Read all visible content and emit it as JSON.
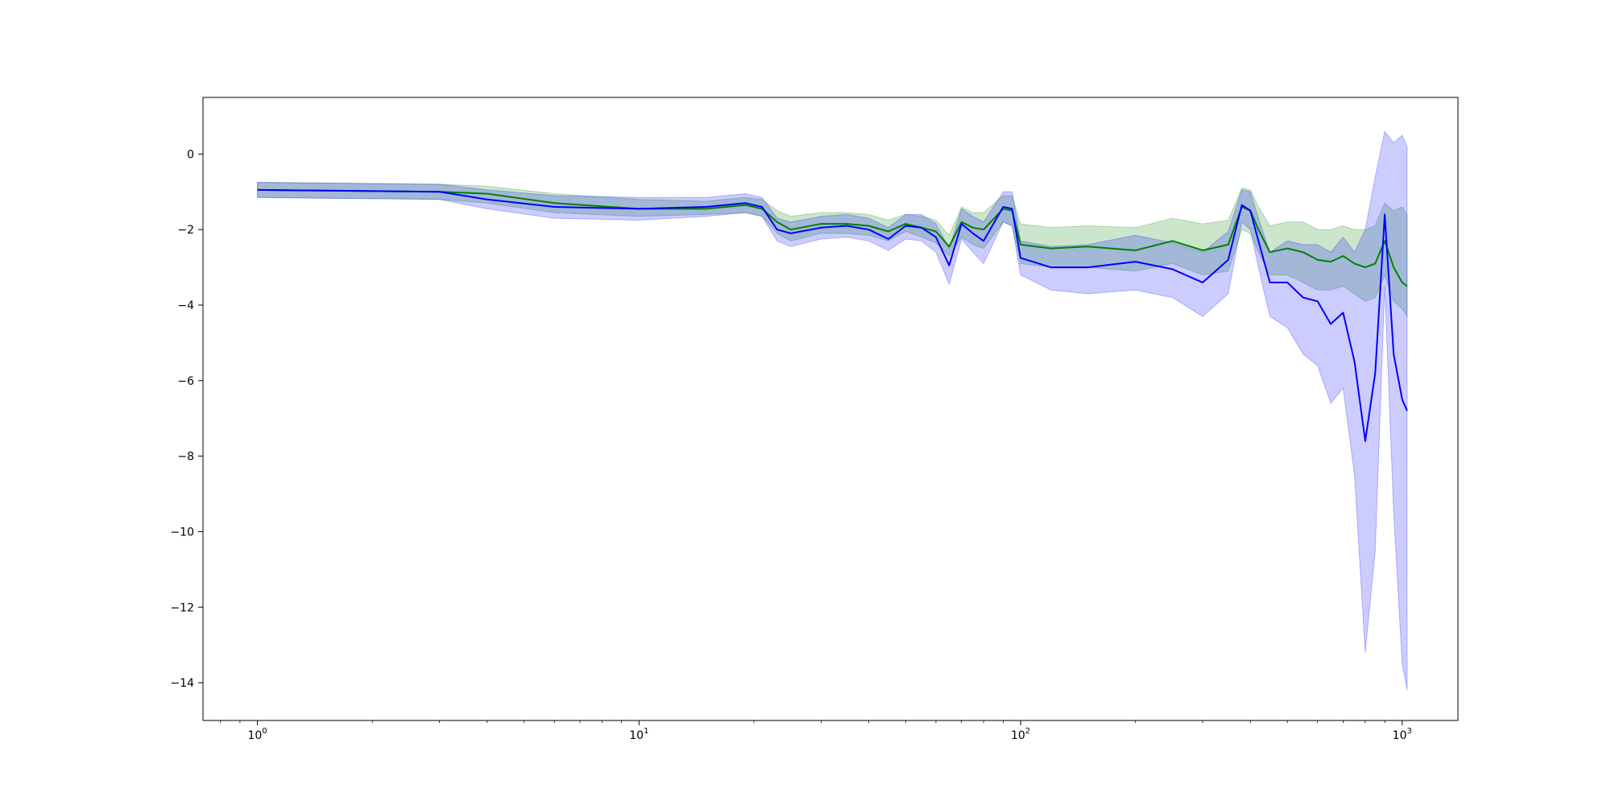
{
  "chart_data": {
    "type": "line",
    "title": "",
    "xlabel": "",
    "ylabel": "",
    "xscale": "log",
    "xlim": [
      0.72,
      1400
    ],
    "ylim": [
      -15,
      1.5
    ],
    "grid": false,
    "x_ticks": [
      {
        "value": 1,
        "label": "10",
        "exp": "0"
      },
      {
        "value": 10,
        "label": "10",
        "exp": "1"
      },
      {
        "value": 100,
        "label": "10",
        "exp": "2"
      },
      {
        "value": 1000,
        "label": "10",
        "exp": "3"
      }
    ],
    "y_ticks": [
      {
        "value": 0,
        "label": "0"
      },
      {
        "value": -2,
        "label": "−2"
      },
      {
        "value": -4,
        "label": "−4"
      },
      {
        "value": -6,
        "label": "−6"
      },
      {
        "value": -8,
        "label": "−8"
      },
      {
        "value": -10,
        "label": "−10"
      },
      {
        "value": -12,
        "label": "−12"
      },
      {
        "value": -14,
        "label": "−14"
      }
    ],
    "series": [
      {
        "color": "#008000",
        "band_color": "#008000",
        "x": [
          1,
          3,
          4,
          6,
          10,
          15,
          19,
          21,
          23,
          25,
          30,
          35,
          40,
          45,
          50,
          55,
          60,
          65,
          70,
          75,
          80,
          90,
          95,
          100,
          120,
          150,
          200,
          250,
          300,
          350,
          380,
          400,
          420,
          450,
          500,
          550,
          600,
          650,
          700,
          750,
          800,
          850,
          900,
          950,
          1000,
          1030
        ],
        "y": [
          -0.95,
          -1.0,
          -1.05,
          -1.3,
          -1.45,
          -1.45,
          -1.35,
          -1.45,
          -1.8,
          -2.0,
          -1.85,
          -1.85,
          -1.9,
          -2.05,
          -1.85,
          -1.95,
          -2.05,
          -2.45,
          -1.8,
          -1.95,
          -2.0,
          -1.45,
          -1.5,
          -2.4,
          -2.5,
          -2.45,
          -2.55,
          -2.3,
          -2.55,
          -2.4,
          -1.4,
          -1.5,
          -2.0,
          -2.6,
          -2.5,
          -2.6,
          -2.8,
          -2.85,
          -2.7,
          -2.9,
          -3.0,
          -2.9,
          -2.3,
          -3.0,
          -3.4,
          -3.5
        ],
        "y_lower": [
          -1.15,
          -1.2,
          -1.3,
          -1.55,
          -1.65,
          -1.6,
          -1.55,
          -1.65,
          -2.1,
          -2.3,
          -2.1,
          -2.1,
          -2.15,
          -2.3,
          -2.05,
          -2.2,
          -2.35,
          -2.7,
          -2.2,
          -2.4,
          -2.5,
          -1.8,
          -1.9,
          -2.9,
          -3.0,
          -3.0,
          -3.1,
          -2.9,
          -3.2,
          -3.1,
          -2.0,
          -2.1,
          -2.6,
          -3.2,
          -3.2,
          -3.4,
          -3.6,
          -3.6,
          -3.5,
          -3.7,
          -3.9,
          -3.8,
          -3.2,
          -3.9,
          -4.1,
          -4.3
        ],
        "y_upper": [
          -0.75,
          -0.8,
          -0.85,
          -1.05,
          -1.2,
          -1.25,
          -1.15,
          -1.2,
          -1.5,
          -1.65,
          -1.55,
          -1.55,
          -1.6,
          -1.75,
          -1.6,
          -1.65,
          -1.75,
          -2.15,
          -1.4,
          -1.55,
          -1.55,
          -1.1,
          -1.1,
          -1.85,
          -1.95,
          -1.9,
          -1.95,
          -1.7,
          -1.85,
          -1.75,
          -0.9,
          -0.95,
          -1.4,
          -1.9,
          -1.8,
          -1.8,
          -2.0,
          -2.0,
          -1.9,
          -2.0,
          -2.0,
          -1.9,
          -1.3,
          -1.5,
          -1.4,
          -1.6
        ]
      },
      {
        "color": "#0000ff",
        "band_color": "#0000ff",
        "x": [
          1,
          3,
          4,
          6,
          10,
          15,
          19,
          21,
          23,
          25,
          30,
          35,
          40,
          45,
          50,
          55,
          60,
          65,
          70,
          75,
          80,
          90,
          95,
          100,
          120,
          150,
          200,
          250,
          300,
          350,
          380,
          400,
          420,
          450,
          500,
          550,
          600,
          650,
          700,
          750,
          800,
          850,
          900,
          950,
          1000,
          1030
        ],
        "y": [
          -0.95,
          -1.0,
          -1.2,
          -1.4,
          -1.45,
          -1.4,
          -1.3,
          -1.4,
          -2.0,
          -2.1,
          -1.95,
          -1.9,
          -2.0,
          -2.25,
          -1.9,
          -1.95,
          -2.2,
          -2.95,
          -1.85,
          -2.1,
          -2.3,
          -1.4,
          -1.45,
          -2.75,
          -3.0,
          -3.0,
          -2.85,
          -3.05,
          -3.4,
          -2.8,
          -1.35,
          -1.5,
          -2.3,
          -3.4,
          -3.4,
          -3.8,
          -3.9,
          -4.5,
          -4.2,
          -5.5,
          -7.6,
          -5.8,
          -1.6,
          -5.3,
          -6.5,
          -6.8
        ],
        "y_lower": [
          -1.15,
          -1.2,
          -1.45,
          -1.7,
          -1.75,
          -1.65,
          -1.55,
          -1.65,
          -2.3,
          -2.45,
          -2.25,
          -2.2,
          -2.3,
          -2.55,
          -2.25,
          -2.3,
          -2.6,
          -3.45,
          -2.25,
          -2.6,
          -2.9,
          -1.8,
          -1.9,
          -3.2,
          -3.6,
          -3.7,
          -3.6,
          -3.8,
          -4.3,
          -3.7,
          -1.8,
          -2.0,
          -3.0,
          -4.3,
          -4.6,
          -5.3,
          -5.6,
          -6.6,
          -6.2,
          -8.5,
          -13.2,
          -10.5,
          -3.5,
          -9.5,
          -13.5,
          -14.2
        ],
        "y_upper": [
          -0.75,
          -0.8,
          -0.95,
          -1.1,
          -1.15,
          -1.15,
          -1.05,
          -1.15,
          -1.7,
          -1.8,
          -1.65,
          -1.6,
          -1.7,
          -1.95,
          -1.6,
          -1.6,
          -1.85,
          -2.5,
          -1.45,
          -1.65,
          -1.8,
          -1.0,
          -1.0,
          -2.3,
          -2.45,
          -2.4,
          -2.15,
          -2.35,
          -2.6,
          -2.05,
          -0.95,
          -1.0,
          -1.7,
          -2.6,
          -2.3,
          -2.4,
          -2.4,
          -2.6,
          -2.2,
          -2.6,
          -2.0,
          -0.6,
          0.6,
          0.3,
          0.5,
          0.2
        ]
      }
    ]
  }
}
